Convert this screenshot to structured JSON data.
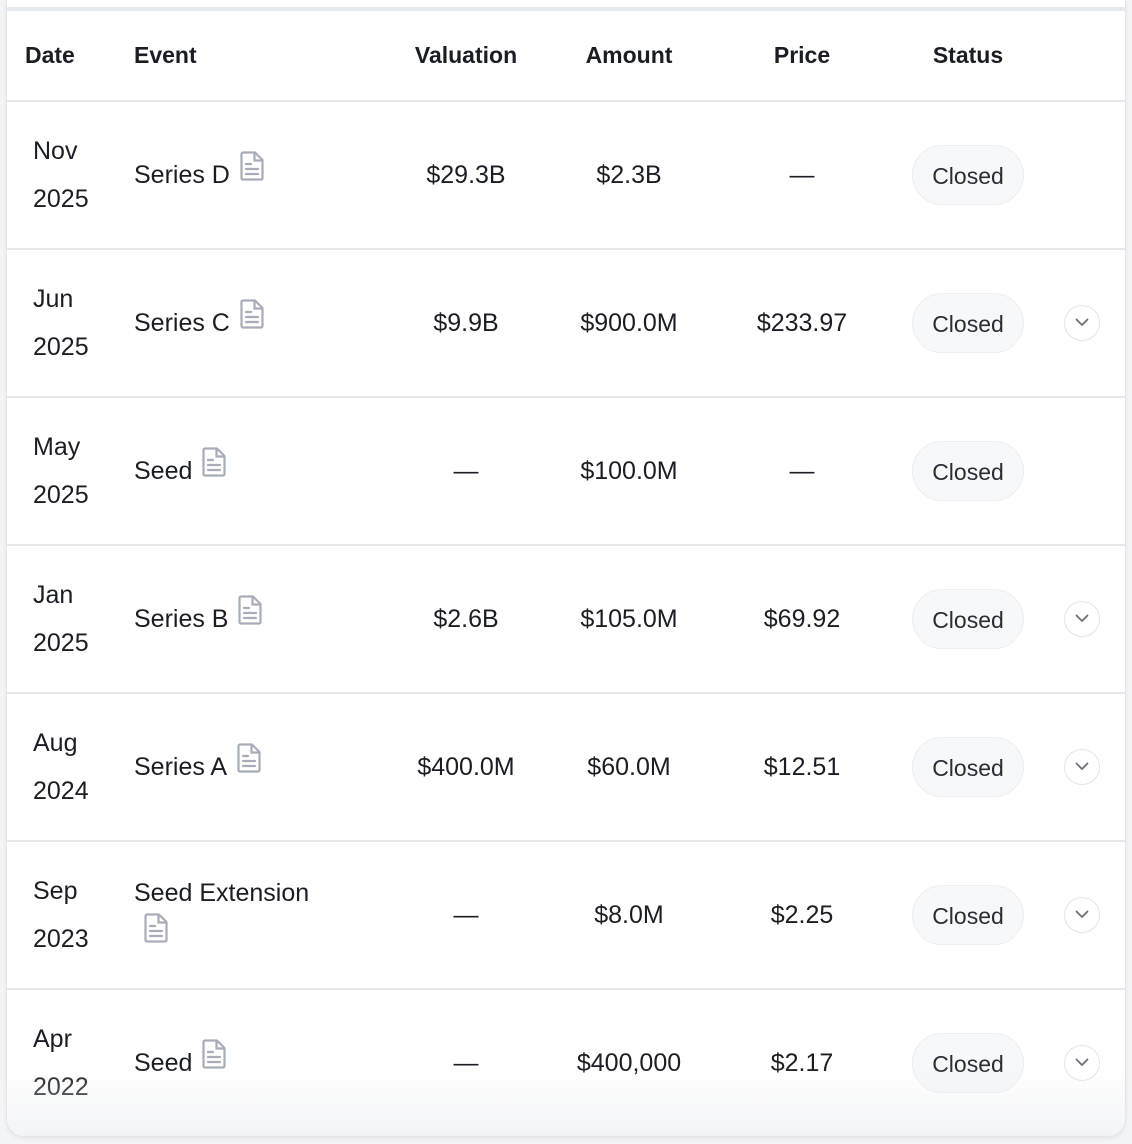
{
  "table": {
    "headers": {
      "date": "Date",
      "event": "Event",
      "valuation": "Valuation",
      "amount": "Amount",
      "price": "Price",
      "status": "Status"
    },
    "rows": [
      {
        "month": "Nov",
        "year": "2025",
        "event": "Series D",
        "valuation": "$29.3B",
        "amount": "$2.3B",
        "price": "—",
        "status": "Closed",
        "expandable": false
      },
      {
        "month": "Jun",
        "year": "2025",
        "event": "Series C",
        "valuation": "$9.9B",
        "amount": "$900.0M",
        "price": "$233.97",
        "status": "Closed",
        "expandable": true
      },
      {
        "month": "May",
        "year": "2025",
        "event": "Seed",
        "valuation": "—",
        "amount": "$100.0M",
        "price": "—",
        "status": "Closed",
        "expandable": false
      },
      {
        "month": "Jan",
        "year": "2025",
        "event": "Series B",
        "valuation": "$2.6B",
        "amount": "$105.0M",
        "price": "$69.92",
        "status": "Closed",
        "expandable": true
      },
      {
        "month": "Aug",
        "year": "2024",
        "event": "Series A",
        "valuation": "$400.0M",
        "amount": "$60.0M",
        "price": "$12.51",
        "status": "Closed",
        "expandable": true
      },
      {
        "month": "Sep",
        "year": "2023",
        "event": "Seed Extension",
        "valuation": "—",
        "amount": "$8.0M",
        "price": "$2.25",
        "status": "Closed",
        "expandable": true
      },
      {
        "month": "Apr",
        "year": "2022",
        "event": "Seed",
        "valuation": "—",
        "amount": "$400,000",
        "price": "$2.17",
        "status": "Closed",
        "expandable": true
      }
    ]
  },
  "icons": {
    "document": "document-icon",
    "expand": "chevron-down-icon"
  },
  "colors": {
    "border": "#e6e8ec",
    "badge_bg": "#f7f8fa",
    "icon": "#a7adb8"
  }
}
